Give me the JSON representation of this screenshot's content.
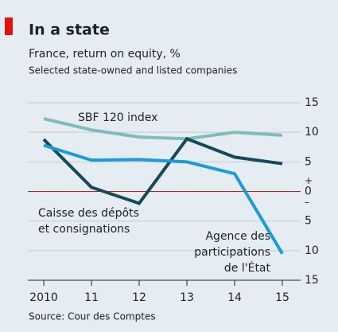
{
  "chart_data": {
    "type": "line",
    "title": "In a state",
    "subtitle": "France, return on equity, %",
    "subtitle2": "Selected state-owned and listed companies",
    "source": "Source: Cour des Comptes",
    "categories": [
      "2010",
      "11",
      "12",
      "13",
      "14",
      "15"
    ],
    "series": [
      {
        "name": "SBF 120 index",
        "color": "#7fbcbd",
        "values": [
          12.3,
          10.4,
          9.2,
          8.9,
          10,
          9.5
        ]
      },
      {
        "name": "Caisse des dépôts et consignations",
        "color": "#16495a",
        "values": [
          8.8,
          0.7,
          -2,
          8.9,
          5.8,
          4.7
        ]
      },
      {
        "name": "Agence des participations de l'État",
        "color": "#1d9bd7",
        "values": [
          7.8,
          5.3,
          5.4,
          5,
          3,
          -10.5
        ]
      }
    ],
    "annotations": [
      {
        "lines": [
          "SBF 120 index"
        ]
      },
      {
        "lines": [
          "Caisse des dépôts",
          "et consignations"
        ]
      },
      {
        "lines": [
          "Agence des",
          "participations",
          "de l'État"
        ]
      }
    ],
    "ylim": [
      -15,
      15
    ],
    "yticks": [
      15,
      10,
      5,
      0,
      {
        "value": -5,
        "label": "5"
      },
      {
        "value": -10,
        "label": "10"
      },
      {
        "value": -15,
        "label": "15"
      }
    ],
    "sign_labels": {
      "positive": "+",
      "negative": "–"
    },
    "grid": true,
    "zero_line_color": "#e3120b"
  }
}
